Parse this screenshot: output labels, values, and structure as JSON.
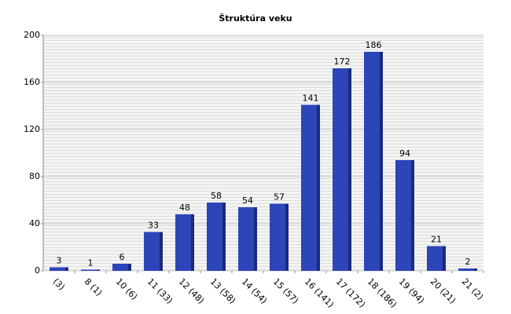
{
  "chart_data": {
    "type": "bar",
    "title": "Štruktúra veku",
    "categories": [
      "(3)",
      "8 (1)",
      "10 (6)",
      "11 (33)",
      "12 (48)",
      "13 (58)",
      "14 (54)",
      "15 (57)",
      "16 (141)",
      "17 (172)",
      "18 (186)",
      "19 (94)",
      "20 (21)",
      "21 (2)"
    ],
    "values": [
      3,
      1,
      6,
      33,
      48,
      58,
      54,
      57,
      141,
      172,
      186,
      94,
      21,
      2
    ],
    "color": "#2c45b8",
    "ylim": [
      0,
      200
    ],
    "yticks": [
      0,
      40,
      80,
      120,
      160,
      200
    ],
    "grid": true
  }
}
